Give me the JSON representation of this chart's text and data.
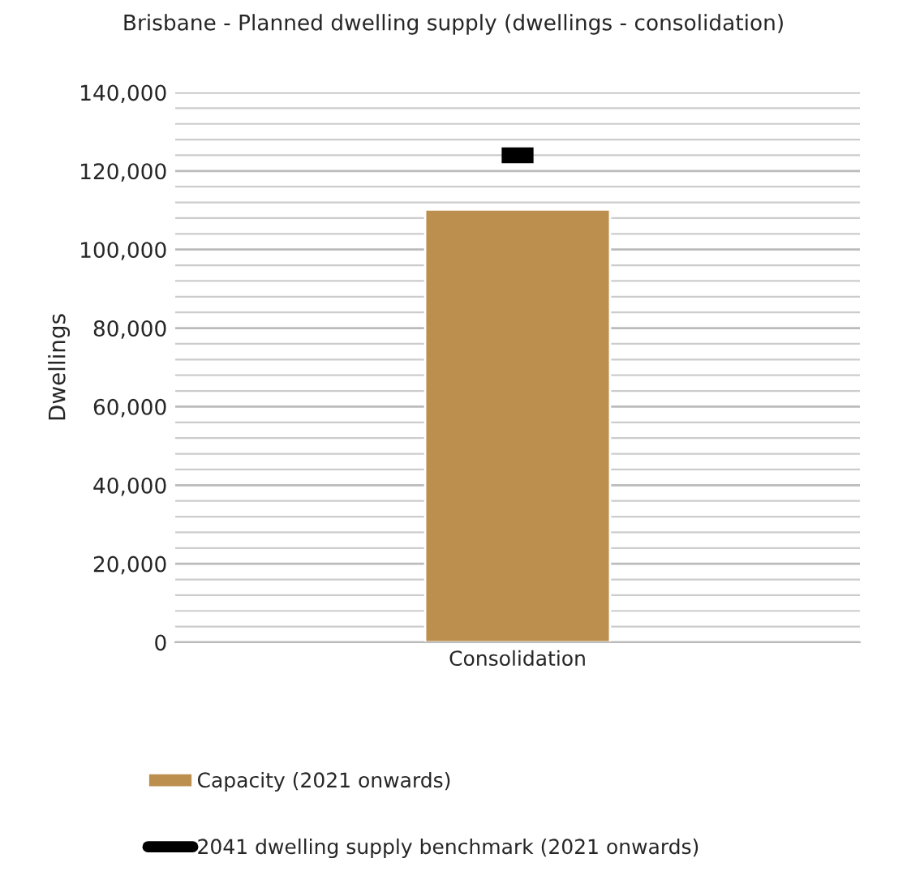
{
  "chart_data": {
    "type": "bar",
    "title": "Brisbane - Planned dwelling supply (dwellings - consolidation)",
    "ylabel": "Dwellings",
    "categories": [
      "Consolidation"
    ],
    "series": [
      {
        "name": "Capacity (2021 onwards)",
        "color": "#bc8f4f",
        "values": [
          110200
        ]
      },
      {
        "name": "2041 dwelling supply benchmark (2021 onwards)",
        "type": "scatter",
        "color": "#000000",
        "values": [
          124000
        ]
      }
    ],
    "ylim": [
      0,
      140000
    ],
    "yticks": [
      {
        "value": 0,
        "label": "0"
      },
      {
        "value": 20000,
        "label": "20,000"
      },
      {
        "value": 40000,
        "label": "40,000"
      },
      {
        "value": 60000,
        "label": "60,000"
      },
      {
        "value": 80000,
        "label": "80,000"
      },
      {
        "value": 100000,
        "label": "100,000"
      },
      {
        "value": 120000,
        "label": "120,000"
      },
      {
        "value": 140000,
        "label": "140,000"
      }
    ],
    "grid": "y",
    "legend": "bottom"
  }
}
